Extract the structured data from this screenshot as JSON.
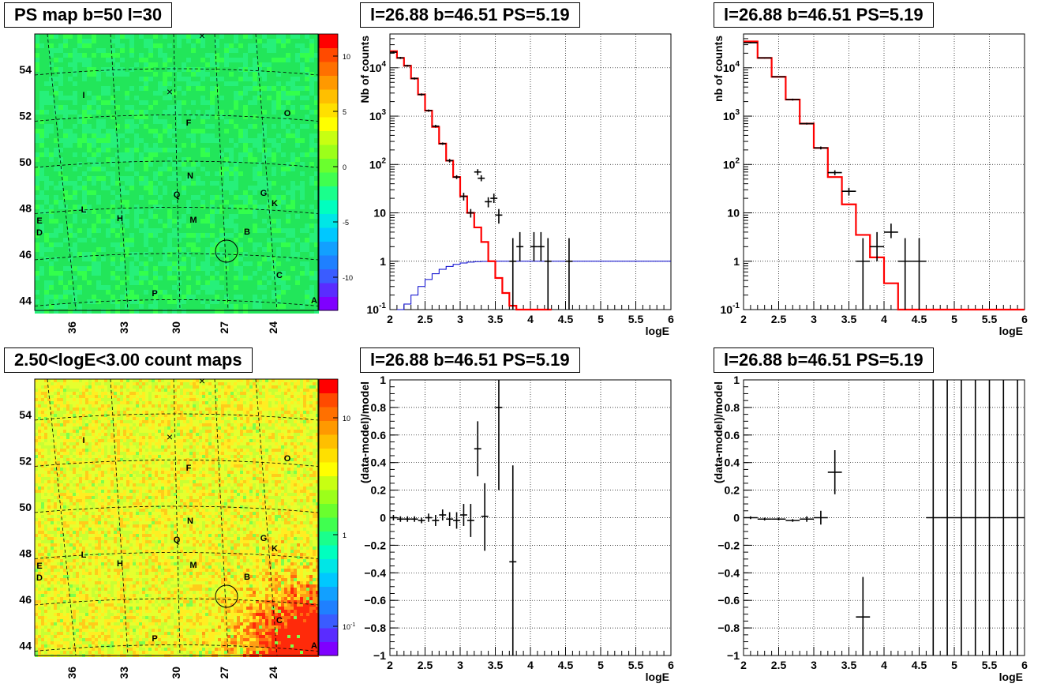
{
  "panels": {
    "tl": {
      "title": "PS map b=50 l=30"
    },
    "tm": {
      "title": "l=26.88 b=46.51 PS=5.19"
    },
    "tr": {
      "title": "l=26.88 b=46.51 PS=5.19"
    },
    "bl": {
      "title": "2.50<logE<3.00 count maps"
    },
    "bm": {
      "title": "l=26.88 b=46.51 PS=5.19"
    },
    "br": {
      "title": "l=26.88 b=46.51 PS=5.19"
    }
  },
  "sky_map": {
    "lat_ticks": [
      "54",
      "52",
      "50",
      "48",
      "46",
      "44"
    ],
    "lon_ticks": [
      "36",
      "33",
      "30",
      "27",
      "24"
    ],
    "labels": [
      "I",
      "F",
      "O",
      "N",
      "G",
      "K",
      "Q",
      "L",
      "E",
      "D",
      "H",
      "M",
      "B",
      "C",
      "P",
      "A"
    ],
    "ps_colorbar_ticks": [
      "10",
      "5",
      "0",
      "-5",
      "-10"
    ],
    "count_colorbar_ticks": [
      "10",
      "1",
      "10"
    ],
    "count_colorbar_exp": "-1"
  },
  "chart_data": [
    {
      "type": "line",
      "id": "spectrum_all",
      "title": "l=26.88 b=46.51 PS=5.19",
      "xlabel": "logE",
      "ylabel": "Nb of counts",
      "xlim": [
        2,
        6
      ],
      "ylim": [
        0.1,
        50000
      ],
      "yscale": "log",
      "x_ticks": [
        "2",
        "2.5",
        "3",
        "3.5",
        "4",
        "4.5",
        "5",
        "5.5",
        "6"
      ],
      "y_ticks": [
        "10^{-1}",
        "1",
        "10",
        "10^{2}",
        "10^{3}",
        "10^{4}"
      ],
      "grid": true,
      "model_edges": [
        2.0,
        2.1,
        2.2,
        2.3,
        2.4,
        2.5,
        2.6,
        2.7,
        2.8,
        2.9,
        3.0,
        3.1,
        3.2,
        3.3,
        3.4,
        3.5,
        3.6,
        3.7,
        3.8,
        3.9,
        4.0,
        4.1,
        4.2,
        4.3
      ],
      "model_values": [
        22000,
        16000,
        11000,
        6000,
        2800,
        1300,
        600,
        270,
        120,
        55,
        22,
        10,
        5,
        2.5,
        1,
        0.45,
        0.22,
        0.12,
        0.1,
        0.1,
        0.1,
        0.1,
        0.1
      ],
      "blue_edges": [
        2.1,
        2.2,
        2.3,
        2.4,
        2.5,
        2.6,
        2.7,
        2.8,
        2.9,
        3.0,
        3.1,
        3.2,
        3.3,
        3.4,
        3.5,
        3.6,
        3.7,
        6.0
      ],
      "blue_values": [
        0.1,
        0.13,
        0.2,
        0.3,
        0.42,
        0.55,
        0.68,
        0.78,
        0.86,
        0.92,
        0.96,
        0.98,
        0.99,
        1.0,
        1.0,
        1.0,
        1.0
      ],
      "data_points": [
        {
          "x": 2.05,
          "y": 21000,
          "lo": 20000,
          "hi": 22000
        },
        {
          "x": 2.15,
          "y": 16000,
          "lo": 15200,
          "hi": 16800
        },
        {
          "x": 2.25,
          "y": 11000,
          "lo": 10500,
          "hi": 11500
        },
        {
          "x": 2.35,
          "y": 6000,
          "lo": 5700,
          "hi": 6300
        },
        {
          "x": 2.45,
          "y": 2800,
          "lo": 2650,
          "hi": 2950
        },
        {
          "x": 2.55,
          "y": 1300,
          "lo": 1230,
          "hi": 1370
        },
        {
          "x": 2.65,
          "y": 620,
          "lo": 580,
          "hi": 660
        },
        {
          "x": 2.75,
          "y": 270,
          "lo": 255,
          "hi": 285
        },
        {
          "x": 2.85,
          "y": 120,
          "lo": 110,
          "hi": 130
        },
        {
          "x": 2.95,
          "y": 55,
          "lo": 50,
          "hi": 60
        },
        {
          "x": 3.05,
          "y": 22,
          "lo": 18,
          "hi": 26
        },
        {
          "x": 3.15,
          "y": 10,
          "lo": 8,
          "hi": 12
        },
        {
          "x": 3.25,
          "y": 70,
          "lo": 60,
          "hi": 80
        },
        {
          "x": 3.3,
          "y": 52,
          "lo": 45,
          "hi": 60
        },
        {
          "x": 3.4,
          "y": 17,
          "lo": 13,
          "hi": 21
        },
        {
          "x": 3.48,
          "y": 20,
          "lo": 16,
          "hi": 25
        },
        {
          "x": 3.55,
          "y": 9,
          "lo": 6,
          "hi": 12
        },
        {
          "x": 3.75,
          "y": 1,
          "lo": 0.1,
          "hi": 3
        },
        {
          "x": 3.85,
          "y": 2,
          "lo": 1,
          "hi": 4
        },
        {
          "x": 4.05,
          "y": 2,
          "lo": 1,
          "hi": 4
        },
        {
          "x": 4.15,
          "y": 2,
          "lo": 1,
          "hi": 4
        },
        {
          "x": 4.25,
          "y": 1,
          "lo": 0.1,
          "hi": 3
        },
        {
          "x": 4.55,
          "y": 1,
          "lo": 0.1,
          "hi": 3
        }
      ]
    },
    {
      "type": "line",
      "id": "spectrum_source",
      "title": "l=26.88 b=46.51 PS=5.19",
      "xlabel": "logE",
      "ylabel": "nb of counts",
      "xlim": [
        2,
        6
      ],
      "ylim": [
        0.1,
        50000
      ],
      "yscale": "log",
      "x_ticks": [
        "2",
        "2.5",
        "3",
        "3.5",
        "4",
        "4.5",
        "5",
        "5.5",
        "6"
      ],
      "y_ticks": [
        "10^{-1}",
        "1",
        "10",
        "10^{2}",
        "10^{3}",
        "10^{4}"
      ],
      "grid": true,
      "model_edges": [
        2.0,
        2.2,
        2.4,
        2.6,
        2.8,
        3.0,
        3.2,
        3.4,
        3.6,
        3.8,
        4.0,
        4.2,
        4.4,
        6.0
      ],
      "model_values": [
        35000,
        16000,
        6500,
        2200,
        700,
        220,
        55,
        15,
        3.5,
        1.2,
        0.35,
        0.1,
        0.1
      ],
      "data_points": [
        {
          "x": 2.1,
          "y": 33000,
          "lo": 32000,
          "hi": 34000
        },
        {
          "x": 2.3,
          "y": 16000,
          "lo": 15500,
          "hi": 16500
        },
        {
          "x": 2.5,
          "y": 6500,
          "lo": 6300,
          "hi": 6700
        },
        {
          "x": 2.7,
          "y": 2200,
          "lo": 2100,
          "hi": 2300
        },
        {
          "x": 2.9,
          "y": 700,
          "lo": 670,
          "hi": 730
        },
        {
          "x": 3.1,
          "y": 220,
          "lo": 205,
          "hi": 235
        },
        {
          "x": 3.3,
          "y": 68,
          "lo": 60,
          "hi": 76
        },
        {
          "x": 3.5,
          "y": 28,
          "lo": 23,
          "hi": 33
        },
        {
          "x": 3.7,
          "y": 1,
          "lo": 0.1,
          "hi": 3
        },
        {
          "x": 3.9,
          "y": 2,
          "lo": 1,
          "hi": 4
        },
        {
          "x": 4.1,
          "y": 4,
          "lo": 3,
          "hi": 6
        },
        {
          "x": 4.3,
          "y": 1,
          "lo": 0.1,
          "hi": 3
        },
        {
          "x": 4.5,
          "y": 1,
          "lo": 0.1,
          "hi": 3
        }
      ]
    },
    {
      "type": "scatter",
      "id": "residual_all",
      "title": "l=26.88 b=46.51 PS=5.19",
      "xlabel": "logE",
      "ylabel": "(data-model)/model",
      "xlim": [
        2,
        6
      ],
      "ylim": [
        -1,
        1
      ],
      "x_ticks": [
        "2",
        "2.5",
        "3",
        "3.5",
        "4",
        "4.5",
        "5",
        "5.5",
        "6"
      ],
      "y_ticks": [
        "−1",
        "−0.8",
        "−0.6",
        "−0.4",
        "−0.2",
        "0",
        "0.2",
        "0.4",
        "0.6",
        "0.8",
        "1"
      ],
      "grid": true,
      "xerr": 0.05,
      "data_points": [
        {
          "x": 2.05,
          "y": 0,
          "lo": -0.02,
          "hi": 0.02
        },
        {
          "x": 2.15,
          "y": -0.01,
          "lo": -0.03,
          "hi": 0.01
        },
        {
          "x": 2.25,
          "y": -0.01,
          "lo": -0.03,
          "hi": 0.01
        },
        {
          "x": 2.35,
          "y": -0.01,
          "lo": -0.03,
          "hi": 0.01
        },
        {
          "x": 2.45,
          "y": -0.02,
          "lo": -0.04,
          "hi": 0
        },
        {
          "x": 2.55,
          "y": 0,
          "lo": -0.03,
          "hi": 0.03
        },
        {
          "x": 2.65,
          "y": -0.02,
          "lo": -0.06,
          "hi": 0.02
        },
        {
          "x": 2.75,
          "y": 0.02,
          "lo": -0.02,
          "hi": 0.06
        },
        {
          "x": 2.85,
          "y": -0.01,
          "lo": -0.06,
          "hi": 0.04
        },
        {
          "x": 2.95,
          "y": -0.02,
          "lo": -0.08,
          "hi": 0.04
        },
        {
          "x": 3.05,
          "y": 0.02,
          "lo": -0.06,
          "hi": 0.1
        },
        {
          "x": 3.15,
          "y": -0.02,
          "lo": -0.14,
          "hi": 0.1
        },
        {
          "x": 3.25,
          "y": 0.5,
          "lo": 0.3,
          "hi": 0.7
        },
        {
          "x": 3.35,
          "y": 0.01,
          "lo": -0.24,
          "hi": 0.25
        },
        {
          "x": 3.55,
          "y": 0.8,
          "lo": 0.2,
          "hi": 1.0
        },
        {
          "x": 3.75,
          "y": -0.32,
          "lo": -1.0,
          "hi": 0.38
        }
      ]
    },
    {
      "type": "scatter",
      "id": "residual_source",
      "title": "l=26.88 b=46.51 PS=5.19",
      "xlabel": "logE",
      "ylabel": "(data-model)/model",
      "xlim": [
        2,
        6
      ],
      "ylim": [
        -1,
        1
      ],
      "x_ticks": [
        "2",
        "2.5",
        "3",
        "3.5",
        "4",
        "4.5",
        "5",
        "5.5",
        "6"
      ],
      "y_ticks": [
        "−1",
        "−0.8",
        "−0.6",
        "−0.4",
        "−0.2",
        "0",
        "0.2",
        "0.4",
        "0.6",
        "0.8",
        "1"
      ],
      "grid": true,
      "xerr": 0.1,
      "data_points": [
        {
          "x": 2.1,
          "y": 0,
          "lo": -0.01,
          "hi": 0.01
        },
        {
          "x": 2.3,
          "y": -0.01,
          "lo": -0.02,
          "hi": 0
        },
        {
          "x": 2.5,
          "y": -0.01,
          "lo": -0.02,
          "hi": 0
        },
        {
          "x": 2.7,
          "y": -0.02,
          "lo": -0.03,
          "hi": -0.01
        },
        {
          "x": 2.9,
          "y": -0.01,
          "lo": -0.03,
          "hi": 0.01
        },
        {
          "x": 3.1,
          "y": 0,
          "lo": -0.05,
          "hi": 0.05
        },
        {
          "x": 3.3,
          "y": 0.33,
          "lo": 0.17,
          "hi": 0.49
        },
        {
          "x": 3.7,
          "y": -0.72,
          "lo": -1.0,
          "hi": -0.43
        },
        {
          "x": 4.7,
          "y": 0,
          "lo": -1.0,
          "hi": 1.0
        },
        {
          "x": 4.9,
          "y": 0,
          "lo": -1.0,
          "hi": 1.0
        },
        {
          "x": 5.1,
          "y": 0,
          "lo": -1.0,
          "hi": 1.0
        },
        {
          "x": 5.3,
          "y": 0,
          "lo": -1.0,
          "hi": 1.0
        },
        {
          "x": 5.5,
          "y": 0,
          "lo": -1.0,
          "hi": 1.0
        },
        {
          "x": 5.7,
          "y": 0,
          "lo": -1.0,
          "hi": 1.0
        },
        {
          "x": 5.9,
          "y": 0,
          "lo": -1.0,
          "hi": 1.0
        }
      ]
    }
  ]
}
